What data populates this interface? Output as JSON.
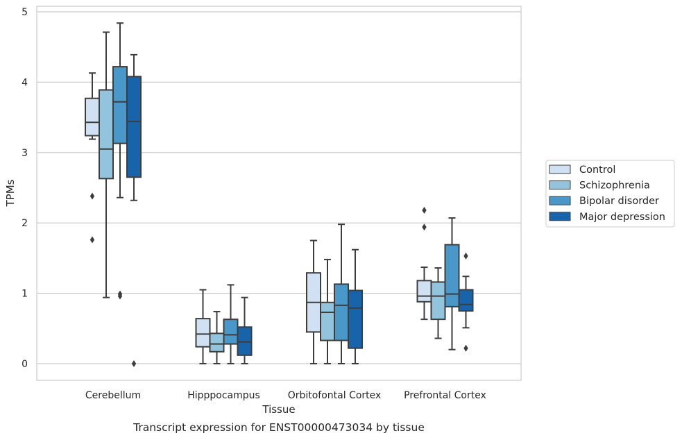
{
  "chart_data": {
    "type": "box",
    "xlabel": "Tissue",
    "ylabel": "TPMs",
    "caption": "Transcript expression for ENST00000473034 by tissue",
    "ylim": [
      -0.23,
      5.08
    ],
    "yticks": [
      0,
      1,
      2,
      3,
      4,
      5
    ],
    "yticklabels": [
      "0",
      "1",
      "2",
      "3",
      "4",
      "5"
    ],
    "grid": "horizontal",
    "legend_position": "right",
    "categories": [
      "Cerebellum",
      "Hipppocampus",
      "Orbitofontal Cortex",
      "Prefrontal Cortex"
    ],
    "series": [
      {
        "name": "Control",
        "color": "#cfe1f2",
        "boxes": [
          {
            "whislo": 3.19,
            "q1": 3.24,
            "med": 3.43,
            "q3": 3.77,
            "whishi": 4.13,
            "fliers": [
              2.38,
              1.76
            ]
          },
          {
            "whislo": 0.0,
            "q1": 0.24,
            "med": 0.42,
            "q3": 0.64,
            "whishi": 1.05,
            "fliers": []
          },
          {
            "whislo": 0.0,
            "q1": 0.45,
            "med": 0.87,
            "q3": 1.29,
            "whishi": 1.75,
            "fliers": []
          },
          {
            "whislo": 0.63,
            "q1": 0.88,
            "med": 0.96,
            "q3": 1.18,
            "whishi": 1.37,
            "fliers": [
              2.18,
              1.94
            ]
          }
        ]
      },
      {
        "name": "Schizophrenia",
        "color": "#93c4de",
        "boxes": [
          {
            "whislo": 0.94,
            "q1": 2.63,
            "med": 3.05,
            "q3": 3.89,
            "whishi": 4.71,
            "fliers": []
          },
          {
            "whislo": 0.0,
            "q1": 0.17,
            "med": 0.28,
            "q3": 0.43,
            "whishi": 0.74,
            "fliers": []
          },
          {
            "whislo": 0.0,
            "q1": 0.33,
            "med": 0.73,
            "q3": 0.87,
            "whishi": 1.48,
            "fliers": []
          },
          {
            "whislo": 0.36,
            "q1": 0.63,
            "med": 0.96,
            "q3": 1.16,
            "whishi": 1.36,
            "fliers": []
          }
        ]
      },
      {
        "name": "Bipolar disorder",
        "color": "#4a98c9",
        "boxes": [
          {
            "whislo": 2.36,
            "q1": 3.13,
            "med": 3.72,
            "q3": 4.22,
            "whishi": 4.84,
            "fliers": [
              0.99,
              0.96
            ]
          },
          {
            "whislo": 0.0,
            "q1": 0.28,
            "med": 0.41,
            "q3": 0.63,
            "whishi": 1.12,
            "fliers": []
          },
          {
            "whislo": 0.0,
            "q1": 0.33,
            "med": 0.83,
            "q3": 1.13,
            "whishi": 1.98,
            "fliers": []
          },
          {
            "whislo": 0.2,
            "q1": 0.81,
            "med": 0.99,
            "q3": 1.69,
            "whishi": 2.07,
            "fliers": []
          }
        ]
      },
      {
        "name": "Major depression",
        "color": "#1764ab",
        "boxes": [
          {
            "whislo": 2.32,
            "q1": 2.65,
            "med": 3.44,
            "q3": 4.08,
            "whishi": 4.39,
            "fliers": [
              0.0
            ]
          },
          {
            "whislo": 0.0,
            "q1": 0.12,
            "med": 0.31,
            "q3": 0.52,
            "whishi": 0.94,
            "fliers": []
          },
          {
            "whislo": 0.0,
            "q1": 0.22,
            "med": 0.79,
            "q3": 1.04,
            "whishi": 1.62,
            "fliers": []
          },
          {
            "whislo": 0.51,
            "q1": 0.75,
            "med": 0.84,
            "q3": 1.05,
            "whishi": 1.24,
            "fliers": [
              1.53,
              0.22
            ]
          }
        ]
      }
    ]
  }
}
